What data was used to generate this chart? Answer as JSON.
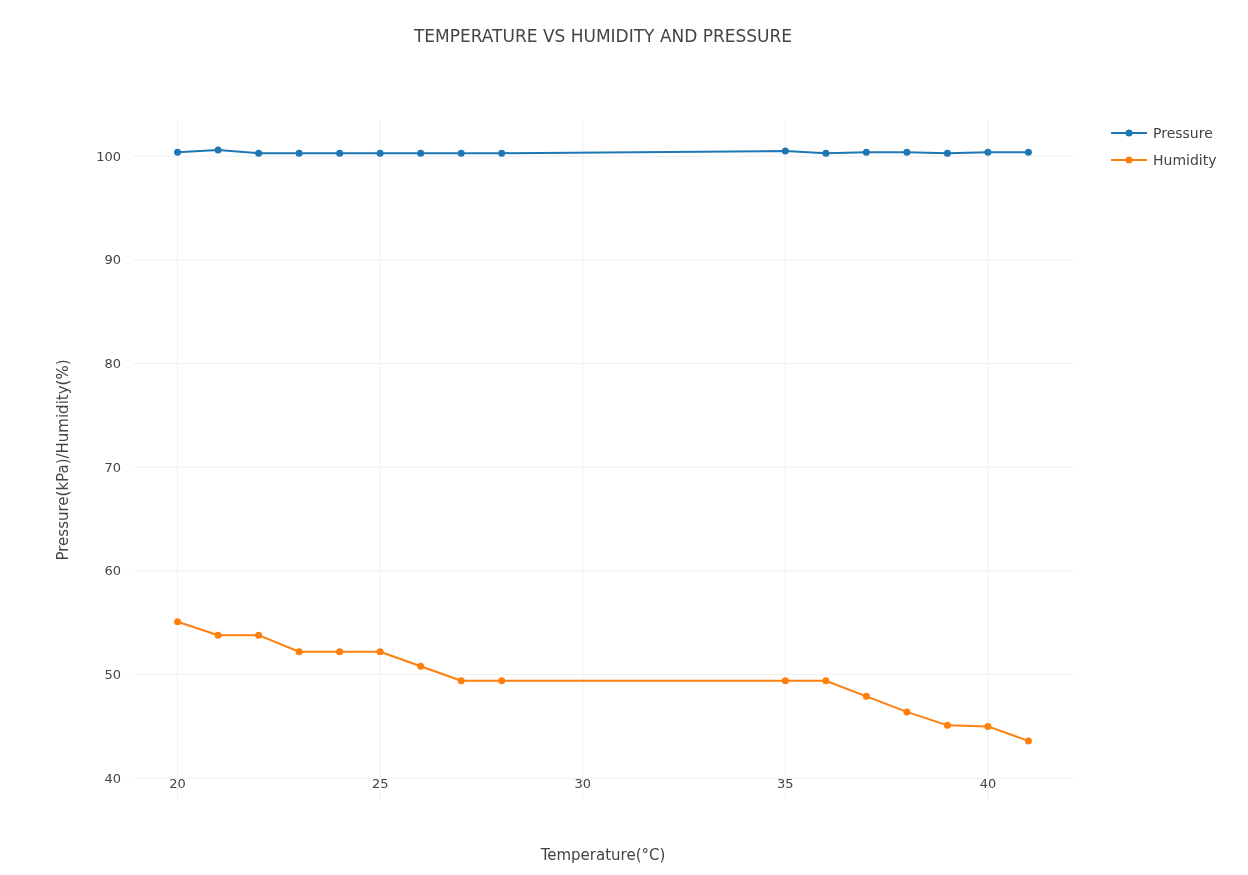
{
  "chart_data": {
    "type": "line",
    "title": "TEMPERATURE VS HUMIDITY AND PRESSURE",
    "xlabel": "Temperature(°C)",
    "ylabel": "Pressure(kPa)/Humidity(%)",
    "x": [
      20,
      21,
      22,
      23,
      24,
      25,
      26,
      27,
      28,
      35,
      36,
      37,
      38,
      39,
      40,
      41
    ],
    "series": [
      {
        "name": "Pressure",
        "color": "#1f77b4",
        "values": [
          100.4,
          100.6,
          100.3,
          100.3,
          100.3,
          100.3,
          100.3,
          100.3,
          100.3,
          100.5,
          100.3,
          100.4,
          100.4,
          100.3,
          100.4,
          100.4
        ]
      },
      {
        "name": "Humidity",
        "color": "#ff7f0e",
        "values": [
          55.1,
          53.8,
          53.8,
          52.2,
          52.2,
          52.2,
          50.8,
          49.4,
          49.4,
          49.4,
          49.4,
          47.9,
          46.4,
          45.1,
          45.0,
          43.6
        ]
      }
    ],
    "xlim": [
      18.9,
      42.1
    ],
    "ylim": [
      37.9,
      103.5
    ],
    "xticks": [
      20,
      25,
      30,
      35,
      40
    ],
    "yticks": [
      40,
      50,
      60,
      70,
      80,
      90,
      100
    ],
    "grid": true,
    "legend": "top right",
    "marker": "circle",
    "line_style": "solid"
  }
}
